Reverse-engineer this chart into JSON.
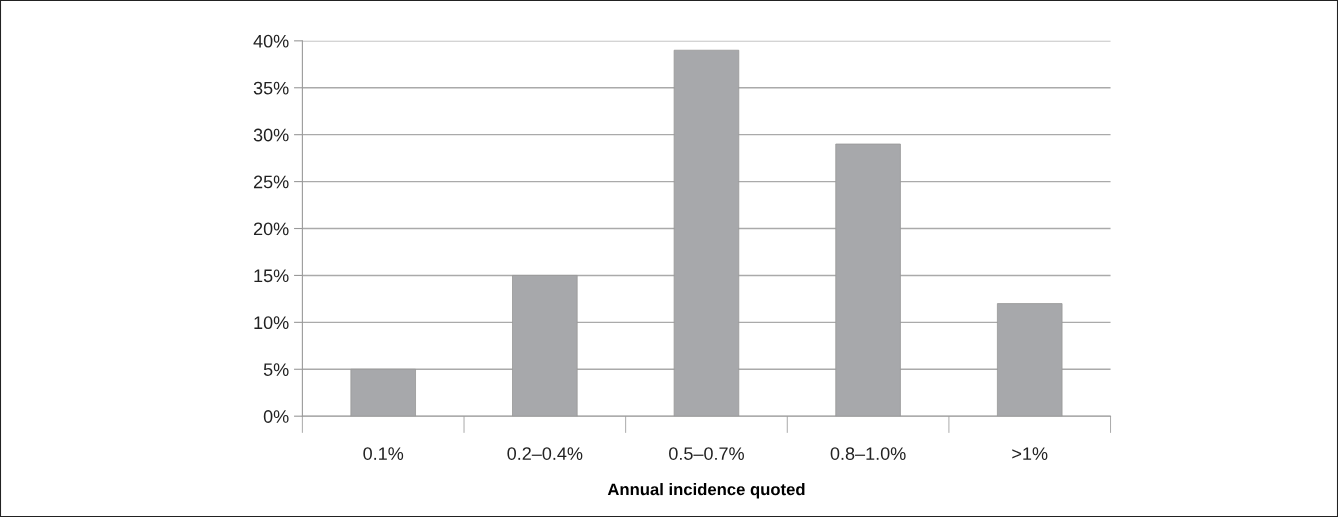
{
  "chart_data": {
    "type": "bar",
    "xlabel": "Annual incidence quoted",
    "categories": [
      "0.1%",
      "0.2–0.4%",
      "0.5–0.7%",
      "0.8–1.0%",
      ">1%"
    ],
    "values": [
      5,
      15,
      39,
      29,
      12
    ],
    "color": "#a7a8ab",
    "ylim": [
      0,
      40
    ],
    "yticks": [
      {
        "value": 0,
        "label": "0%"
      },
      {
        "value": 5,
        "label": "5%"
      },
      {
        "value": 10,
        "label": "10%"
      },
      {
        "value": 15,
        "label": "15%"
      },
      {
        "value": 20,
        "label": "20%"
      },
      {
        "value": 25,
        "label": "25%"
      },
      {
        "value": 30,
        "label": "30%"
      },
      {
        "value": 35,
        "label": "35%"
      },
      {
        "value": 40,
        "label": "40%"
      }
    ],
    "grid": "y",
    "legend": false
  }
}
